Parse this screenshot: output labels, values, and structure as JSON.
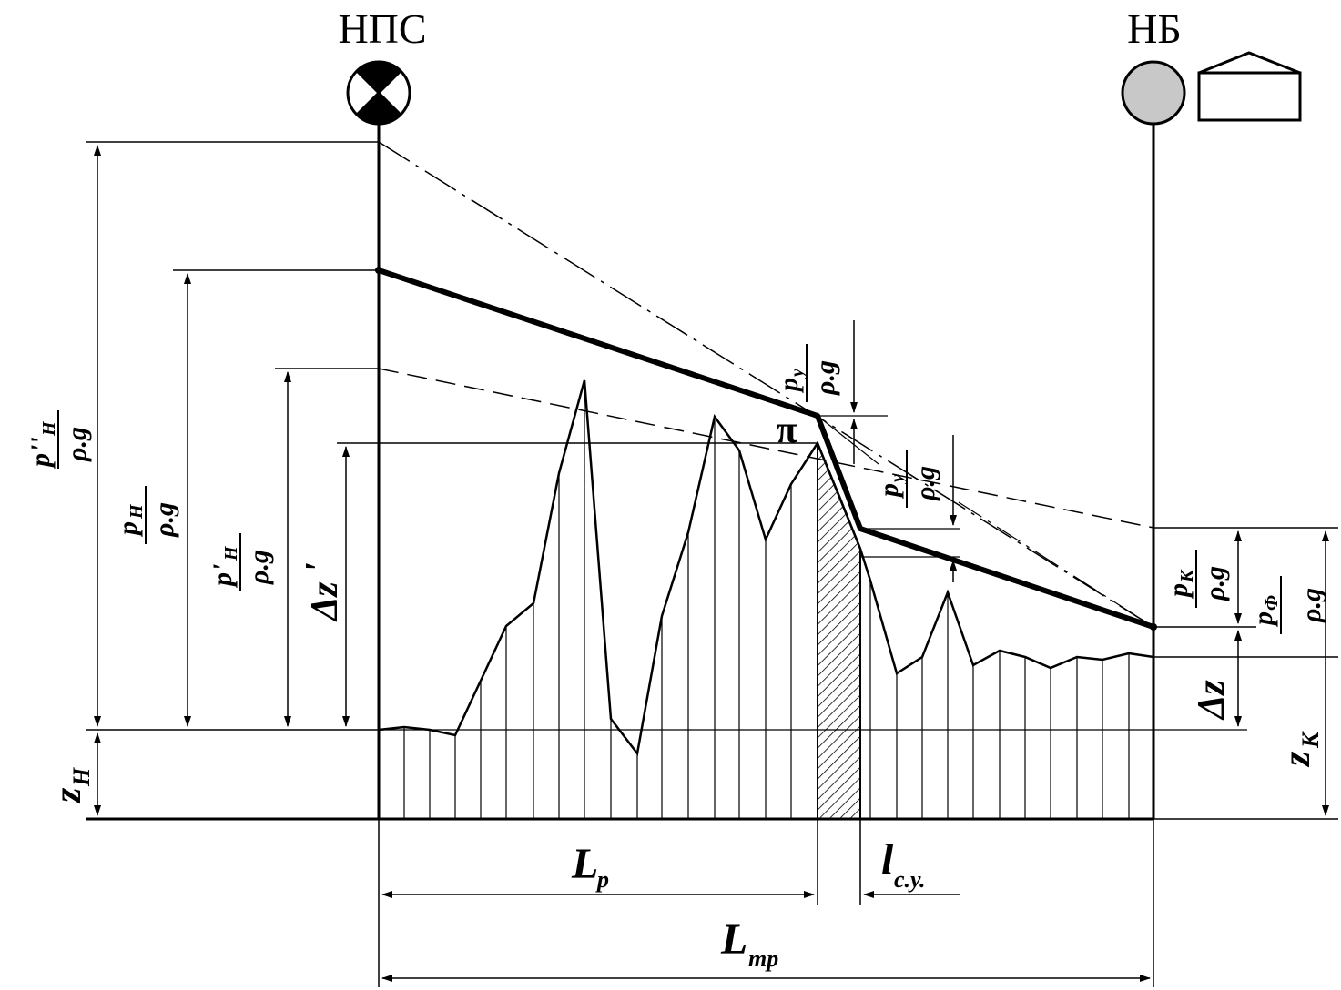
{
  "stations": {
    "pump_station": "НПС",
    "tank_farm": "НБ"
  },
  "labels": {
    "pn2": {
      "num": "p",
      "prime": "''",
      "sub": "Н",
      "den": "ρ.g"
    },
    "pn": {
      "num": "p",
      "sub": "Н",
      "den": "ρ.g"
    },
    "pn1": {
      "num": "p",
      "prime": "'",
      "sub": "Н",
      "den": "ρ.g"
    },
    "dz1": {
      "main": "Δz",
      "prime": "'"
    },
    "zn": {
      "main": "z",
      "sub": "Н"
    },
    "zk": {
      "main": "z",
      "sub": "К"
    },
    "dz": {
      "main": "Δz"
    },
    "py_top": {
      "num": "p",
      "sub": "у",
      "den": "ρ.g"
    },
    "py_mid": {
      "num": "p",
      "sub": "у",
      "den": "ρ.g"
    },
    "pk": {
      "num": "p",
      "sub": "К",
      "den": "ρ.g"
    },
    "pf": {
      "num": "p",
      "sub": "Ф",
      "den": "ρ.g"
    },
    "pg": {
      "den": "ρ.g"
    },
    "pi": "π",
    "lp": {
      "main": "L",
      "sub": "р"
    },
    "lsu": {
      "main": "l",
      "sub": "с.у."
    },
    "ltr": {
      "main": "L",
      "sub": "тр"
    }
  },
  "colors": {
    "line": "#000000",
    "tank_fill": "#c8c8c8",
    "background": "#ffffff"
  },
  "icons": {
    "pump": "pump-station-icon",
    "tank": "tank-icon",
    "building": "building-icon"
  }
}
